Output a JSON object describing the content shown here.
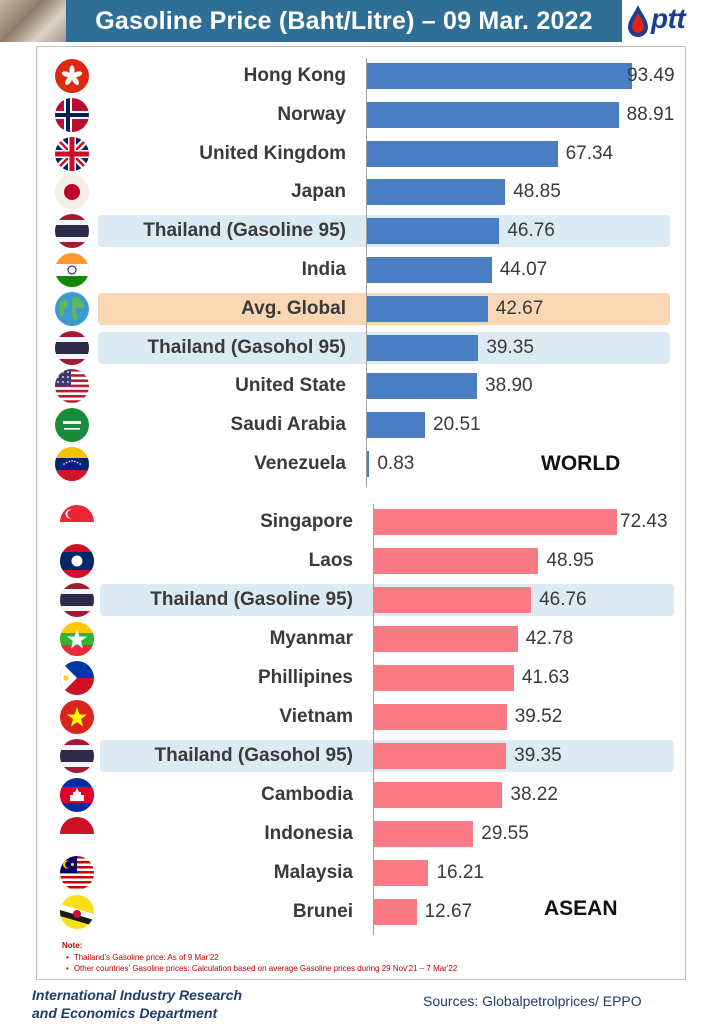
{
  "header": {
    "title": "Gasoline Price (Baht/Litre) – 09 Mar. 2022",
    "logo_text": "ptt"
  },
  "colors": {
    "header_band": "#2f6f96",
    "world_bar": "#4a7ec2",
    "asean_bar": "#fb7b85",
    "thailand_highlight": "#dbeaf3",
    "global_highlight": "#fad7b4"
  },
  "chart_data": [
    {
      "type": "bar",
      "orientation": "horizontal",
      "region_label": "WORLD",
      "categories": [
        "Hong Kong",
        "Norway",
        "United Kingdom",
        "Japan",
        "Thailand (Gasoline 95)",
        "India",
        "Avg. Global",
        "Thailand (Gasohol 95)",
        "United State",
        "Saudi Arabia",
        "Venezuela"
      ],
      "values": [
        93.49,
        88.91,
        67.34,
        48.85,
        46.76,
        44.07,
        42.67,
        39.35,
        38.9,
        20.51,
        0.83
      ],
      "value_labels": [
        "93.49",
        "88.91",
        "67.34",
        "48.85",
        "46.76",
        "44.07",
        "42.67",
        "39.35",
        "38.90",
        "20.51",
        "0.83"
      ],
      "flags": [
        "hong-kong-flag-icon",
        "norway-flag-icon",
        "uk-flag-icon",
        "japan-flag-icon",
        "thailand-flag-icon",
        "india-flag-icon",
        "globe-icon",
        "thailand-flag-icon",
        "usa-flag-icon",
        "saudi-arabia-flag-icon",
        "venezuela-flag-icon"
      ],
      "highlight": [
        "",
        "",
        "",
        "",
        "thailand",
        "",
        "global",
        "thailand",
        "",
        "",
        ""
      ],
      "xlim": [
        0,
        100
      ],
      "grid": false
    },
    {
      "type": "bar",
      "orientation": "horizontal",
      "region_label": "ASEAN",
      "categories": [
        "Singapore",
        "Laos",
        "Thailand (Gasoline 95)",
        "Myanmar",
        "Phillipines",
        "Vietnam",
        "Thailand (Gasohol 95)",
        "Cambodia",
        "Indonesia",
        "Malaysia",
        "Brunei"
      ],
      "values": [
        72.43,
        48.95,
        46.76,
        42.78,
        41.63,
        39.52,
        39.35,
        38.22,
        29.55,
        16.21,
        12.67
      ],
      "value_labels": [
        "72.43",
        "48.95",
        "46.76",
        "42.78",
        "41.63",
        "39.52",
        "39.35",
        "38.22",
        "29.55",
        "16.21",
        "12.67"
      ],
      "flags": [
        "singapore-flag-icon",
        "laos-flag-icon",
        "thailand-flag-icon",
        "myanmar-flag-icon",
        "philippines-flag-icon",
        "vietnam-flag-icon",
        "thailand-flag-icon",
        "cambodia-flag-icon",
        "indonesia-flag-icon",
        "malaysia-flag-icon",
        "brunei-flag-icon"
      ],
      "highlight": [
        "",
        "",
        "thailand",
        "",
        "",
        "",
        "thailand",
        "",
        "",
        "",
        ""
      ],
      "xlim": [
        0,
        78
      ],
      "grid": false
    }
  ],
  "notes": {
    "title": "Note:",
    "items": [
      "Thailand's Gasoline price: As of 9 Mar'22",
      "Other countries' Gasoline prices: Calculation based on average Gasoline prices during 29 Nov'21 – 7 Mar'22"
    ]
  },
  "footer": {
    "department_line1": "International Industry Research",
    "department_line2": "and Economics Department",
    "sources": "Sources: Globalpetrolprices/ EPPO"
  }
}
